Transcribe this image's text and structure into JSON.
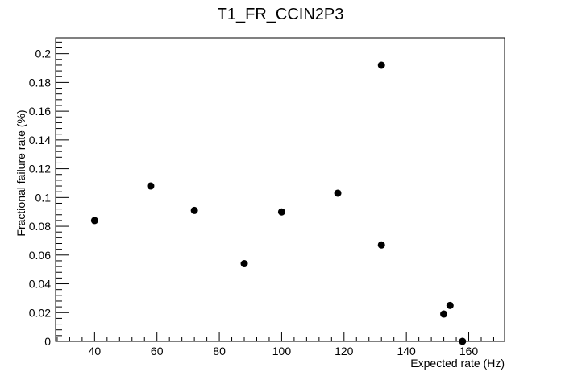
{
  "chart_data": {
    "type": "scatter",
    "title": "T1_FR_CCIN2P3",
    "xlabel": "Expected rate (Hz)",
    "ylabel": "Fractional failure rate (%)",
    "xlim": [
      27.5,
      171.5
    ],
    "ylim": [
      0,
      0.211
    ],
    "x_ticks": [
      40,
      60,
      80,
      100,
      120,
      140,
      160
    ],
    "x_tick_labels": [
      "40",
      "60",
      "80",
      "100",
      "120",
      "140",
      "160"
    ],
    "y_ticks": [
      0,
      0.02,
      0.04,
      0.06,
      0.08,
      0.1,
      0.12,
      0.14,
      0.16,
      0.18,
      0.2
    ],
    "y_tick_labels": [
      "0",
      "0.02",
      "0.04",
      "0.06",
      "0.08",
      "0.1",
      "0.12",
      "0.14",
      "0.16",
      "0.18",
      "0.2"
    ],
    "grid": false,
    "legend": "none",
    "marker_color": "#000000",
    "points": [
      {
        "x": 40,
        "y": 0.084
      },
      {
        "x": 58,
        "y": 0.108
      },
      {
        "x": 72,
        "y": 0.091
      },
      {
        "x": 88,
        "y": 0.054
      },
      {
        "x": 100,
        "y": 0.09
      },
      {
        "x": 118,
        "y": 0.103
      },
      {
        "x": 132,
        "y": 0.192
      },
      {
        "x": 132,
        "y": 0.067
      },
      {
        "x": 152,
        "y": 0.019
      },
      {
        "x": 154,
        "y": 0.025
      },
      {
        "x": 158,
        "y": 0.0
      }
    ]
  }
}
